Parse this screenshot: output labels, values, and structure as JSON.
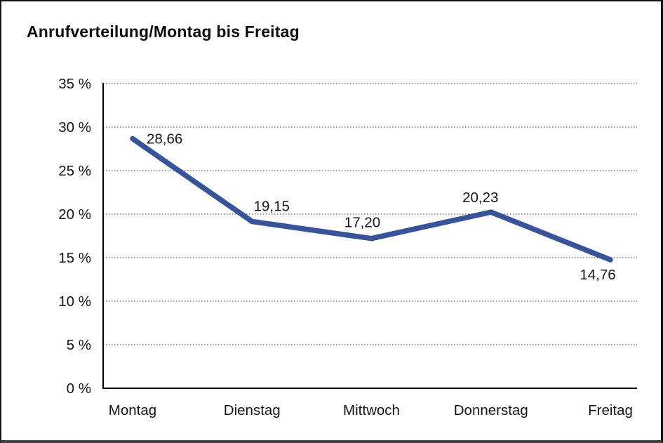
{
  "window": {
    "background": "#ffffff",
    "frame_border_color": "#121212"
  },
  "chart_data": {
    "type": "line",
    "title": "Anrufverteilung/Montag bis Freitag",
    "categories": [
      "Montag",
      "Dienstag",
      "Mittwoch",
      "Donnerstag",
      "Freitag"
    ],
    "values": [
      28.66,
      19.15,
      17.2,
      20.23,
      14.76
    ],
    "point_labels": [
      "28,66",
      "19,15",
      "17,20",
      "20,23",
      "14,76"
    ],
    "xlabel": "",
    "ylabel": "",
    "ylim": [
      0,
      35
    ],
    "y_tick_step": 5,
    "y_tick_labels": [
      "0 %",
      "5 %",
      "10 %",
      "15 %",
      "20 %",
      "25 %",
      "30 %",
      "35 %"
    ],
    "grid": "horizontal-dotted",
    "legend": "none",
    "line_color": "#35549D",
    "axis_color": "#000000",
    "gridline_color": "#4d4d4d",
    "text_color": "#161616"
  }
}
